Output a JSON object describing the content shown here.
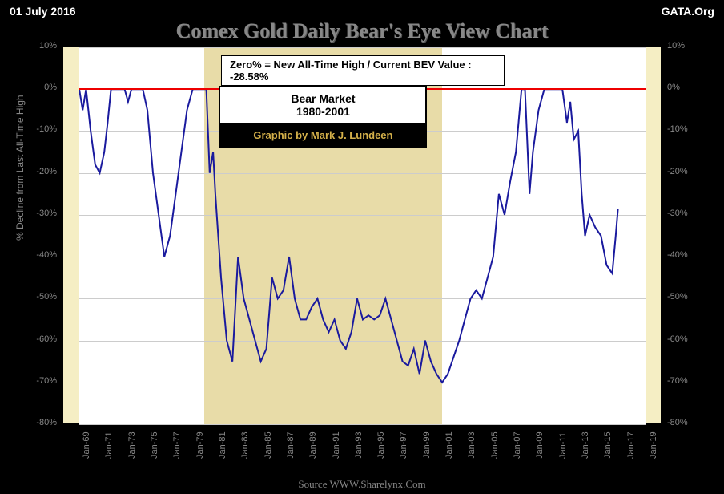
{
  "header": {
    "date": "01 July 2016",
    "org": "GATA.Org"
  },
  "title": "Comex Gold Daily Bear's Eye View Chart",
  "subtitle": "Zero% = New All-Time High  / Current  BEV Value :  -28.58%",
  "bear_box": {
    "line1": "Bear Market",
    "line2": "1980-2001",
    "credit": "Graphic by Mark J. Lundeen"
  },
  "axis": {
    "title": "% Decline from Last All-Time High",
    "ymin": -80,
    "ymax": 10,
    "ytick_step": 10,
    "ylabels": [
      "10%",
      "0%",
      "-10%",
      "-20%",
      "-30%",
      "-40%",
      "-50%",
      "-60%",
      "-70%",
      "-80%"
    ],
    "xlabels": [
      "Jan-69",
      "Jan-71",
      "Jan-73",
      "Jan-75",
      "Jan-77",
      "Jan-79",
      "Jan-81",
      "Jan-83",
      "Jan-85",
      "Jan-87",
      "Jan-89",
      "Jan-91",
      "Jan-93",
      "Jan-95",
      "Jan-97",
      "Jan-99",
      "Jan-01",
      "Jan-03",
      "Jan-05",
      "Jan-07",
      "Jan-09",
      "Jan-11",
      "Jan-13",
      "Jan-15",
      "Jan-17",
      "Jan-19"
    ],
    "xmin": 1969,
    "xmax": 2019
  },
  "shaded": {
    "start": 1980,
    "end": 2001
  },
  "colors": {
    "bg": "#000000",
    "plot_outer": "#f5eec4",
    "plot_inner": "#ffffff",
    "shaded": "#e8dca8",
    "line": "#1a1a9e",
    "zero": "#e00000",
    "grid": "#cccccc",
    "text_dim": "#888888"
  },
  "source": "Source WWW.Sharelynx.Com",
  "series": [
    [
      1969,
      0
    ],
    [
      1969.3,
      -5
    ],
    [
      1969.6,
      0
    ],
    [
      1970,
      -10
    ],
    [
      1970.4,
      -18
    ],
    [
      1970.8,
      -20
    ],
    [
      1971.2,
      -15
    ],
    [
      1971.5,
      -8
    ],
    [
      1971.8,
      0
    ],
    [
      1972,
      0
    ],
    [
      1972.3,
      0
    ],
    [
      1972.6,
      0
    ],
    [
      1973,
      0
    ],
    [
      1973.3,
      -3
    ],
    [
      1973.6,
      0
    ],
    [
      1974,
      0
    ],
    [
      1974.3,
      0
    ],
    [
      1974.6,
      0
    ],
    [
      1975,
      -5
    ],
    [
      1975.5,
      -20
    ],
    [
      1976,
      -30
    ],
    [
      1976.5,
      -40
    ],
    [
      1977,
      -35
    ],
    [
      1977.5,
      -25
    ],
    [
      1978,
      -15
    ],
    [
      1978.5,
      -5
    ],
    [
      1979,
      0
    ],
    [
      1979.3,
      0
    ],
    [
      1979.6,
      0
    ],
    [
      1980,
      0
    ],
    [
      1980.2,
      0
    ],
    [
      1980.5,
      -20
    ],
    [
      1980.8,
      -15
    ],
    [
      1981,
      -25
    ],
    [
      1981.5,
      -45
    ],
    [
      1982,
      -60
    ],
    [
      1982.5,
      -65
    ],
    [
      1983,
      -40
    ],
    [
      1983.5,
      -50
    ],
    [
      1984,
      -55
    ],
    [
      1984.5,
      -60
    ],
    [
      1985,
      -65
    ],
    [
      1985.5,
      -62
    ],
    [
      1986,
      -45
    ],
    [
      1986.5,
      -50
    ],
    [
      1987,
      -48
    ],
    [
      1987.5,
      -40
    ],
    [
      1988,
      -50
    ],
    [
      1988.5,
      -55
    ],
    [
      1989,
      -55
    ],
    [
      1989.5,
      -52
    ],
    [
      1990,
      -50
    ],
    [
      1990.5,
      -55
    ],
    [
      1991,
      -58
    ],
    [
      1991.5,
      -55
    ],
    [
      1992,
      -60
    ],
    [
      1992.5,
      -62
    ],
    [
      1993,
      -58
    ],
    [
      1993.5,
      -50
    ],
    [
      1994,
      -55
    ],
    [
      1994.5,
      -54
    ],
    [
      1995,
      -55
    ],
    [
      1995.5,
      -54
    ],
    [
      1996,
      -50
    ],
    [
      1996.5,
      -55
    ],
    [
      1997,
      -60
    ],
    [
      1997.5,
      -65
    ],
    [
      1998,
      -66
    ],
    [
      1998.5,
      -62
    ],
    [
      1999,
      -68
    ],
    [
      1999.5,
      -60
    ],
    [
      2000,
      -65
    ],
    [
      2000.5,
      -68
    ],
    [
      2001,
      -70
    ],
    [
      2001.5,
      -68
    ],
    [
      2002,
      -64
    ],
    [
      2002.5,
      -60
    ],
    [
      2003,
      -55
    ],
    [
      2003.5,
      -50
    ],
    [
      2004,
      -48
    ],
    [
      2004.5,
      -50
    ],
    [
      2005,
      -45
    ],
    [
      2005.5,
      -40
    ],
    [
      2006,
      -25
    ],
    [
      2006.5,
      -30
    ],
    [
      2007,
      -22
    ],
    [
      2007.5,
      -15
    ],
    [
      2008,
      0
    ],
    [
      2008.3,
      0
    ],
    [
      2008.7,
      -25
    ],
    [
      2009,
      -15
    ],
    [
      2009.5,
      -5
    ],
    [
      2010,
      0
    ],
    [
      2010.3,
      0
    ],
    [
      2010.6,
      0
    ],
    [
      2011,
      0
    ],
    [
      2011.3,
      0
    ],
    [
      2011.6,
      0
    ],
    [
      2012,
      -8
    ],
    [
      2012.3,
      -3
    ],
    [
      2012.6,
      -12
    ],
    [
      2013,
      -10
    ],
    [
      2013.3,
      -25
    ],
    [
      2013.6,
      -35
    ],
    [
      2014,
      -30
    ],
    [
      2014.5,
      -33
    ],
    [
      2015,
      -35
    ],
    [
      2015.5,
      -42
    ],
    [
      2016,
      -44
    ],
    [
      2016.3,
      -35
    ],
    [
      2016.5,
      -28.58
    ]
  ]
}
